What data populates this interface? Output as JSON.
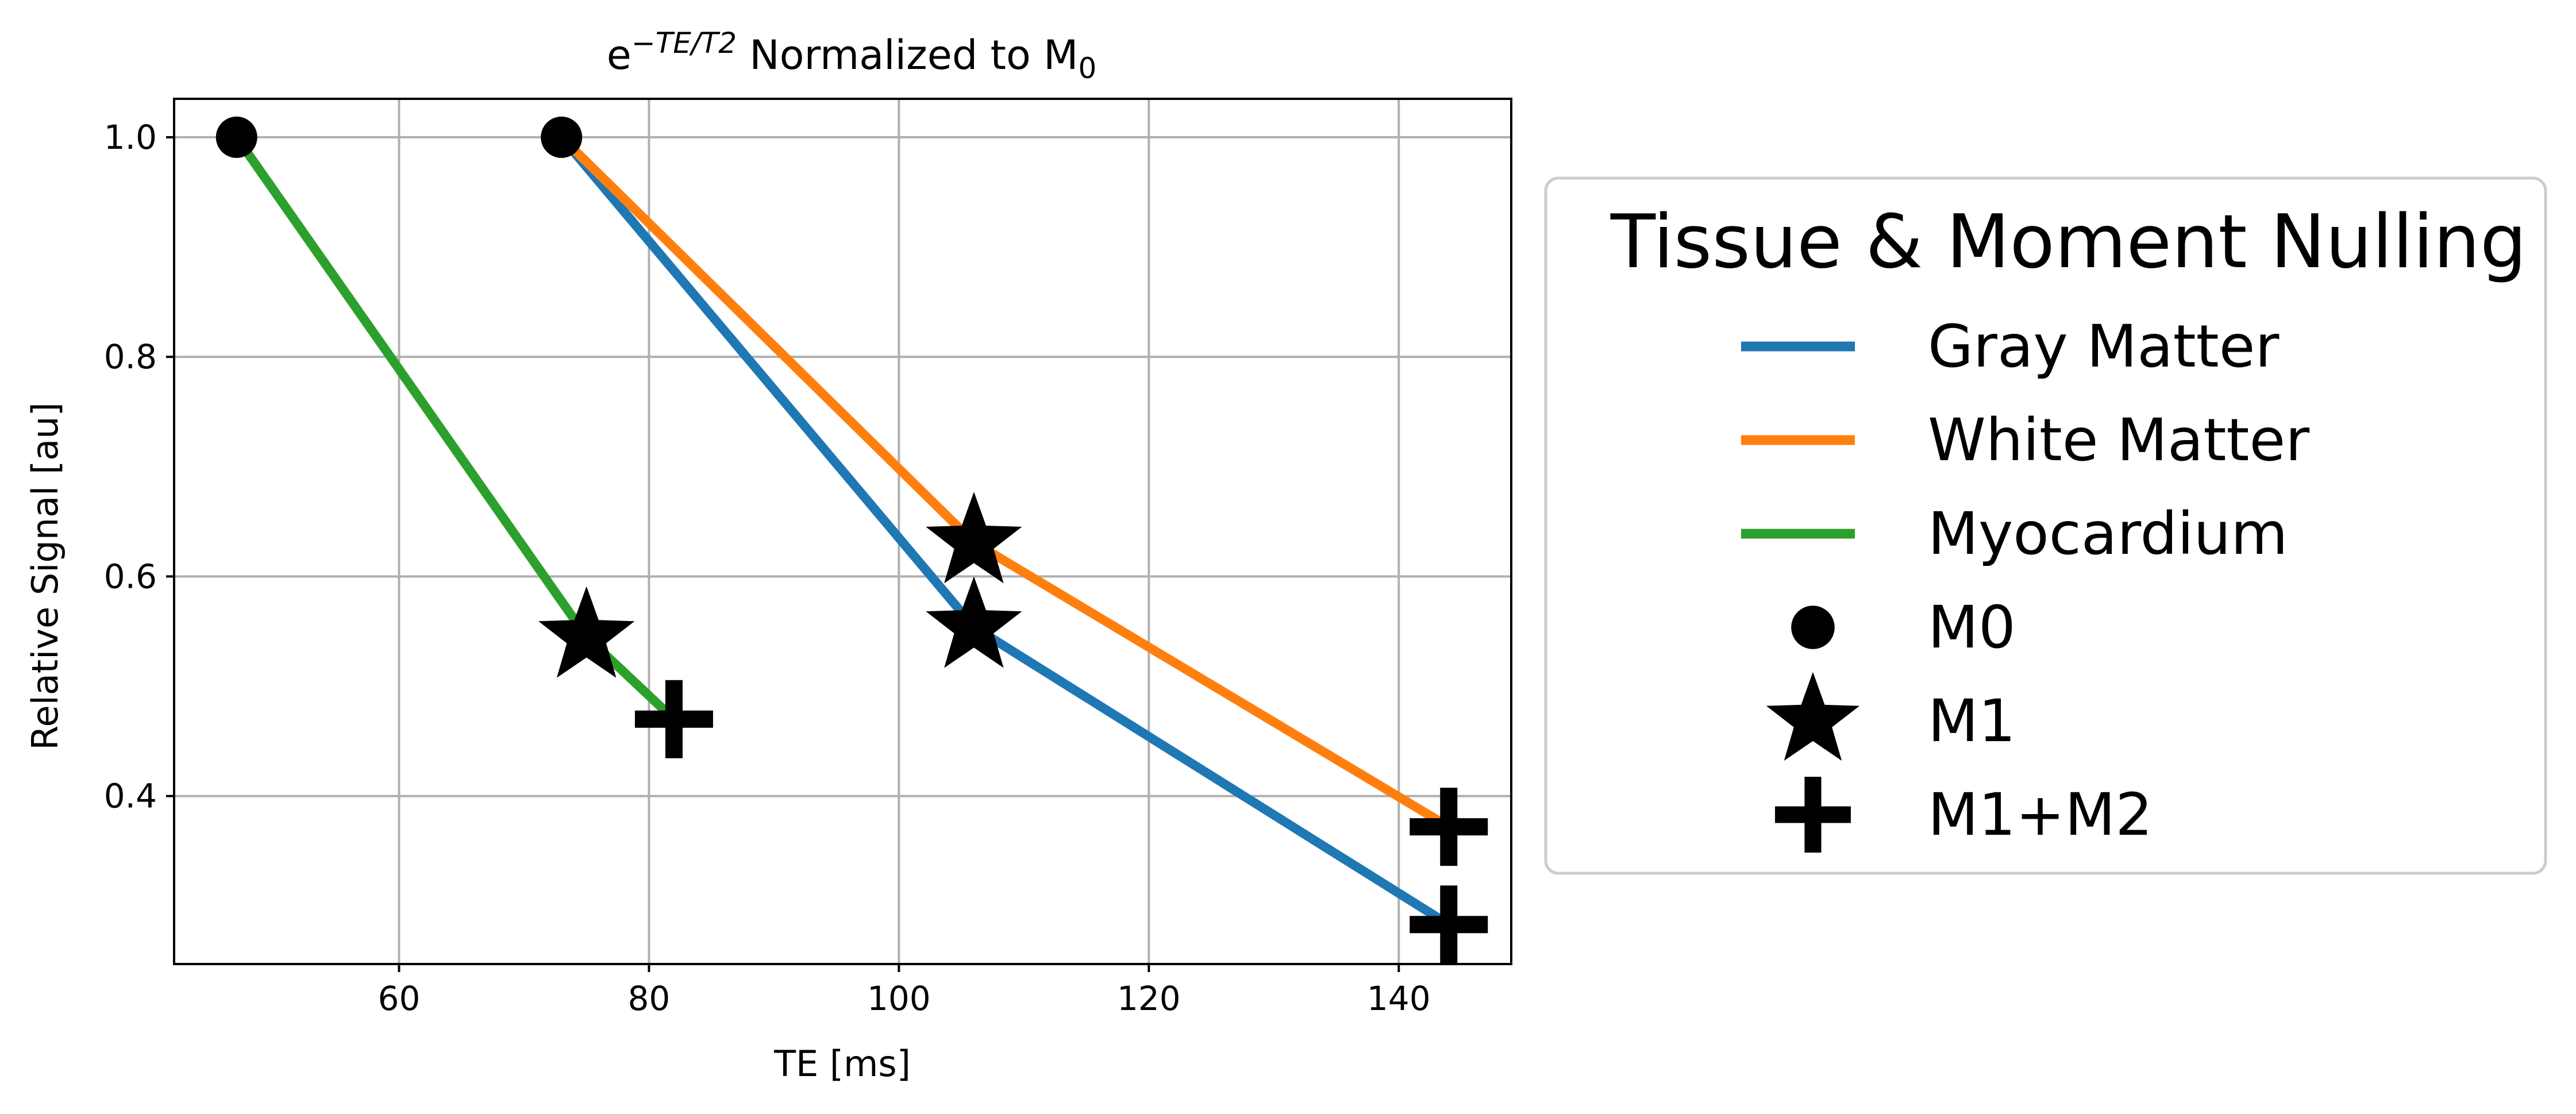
{
  "chart_data": {
    "type": "line",
    "title_base": "e",
    "title_sup": "−TE/T2",
    "title_rest": " Normalized to M",
    "title_sub": "0",
    "xlabel": "TE [ms]",
    "ylabel": "Relative Signal [au]",
    "xlim": [
      42,
      149
    ],
    "ylim": [
      0.247,
      1.035
    ],
    "xticks": [
      60,
      80,
      100,
      120,
      140
    ],
    "yticks": [
      0.4,
      0.6,
      0.8,
      1.0
    ],
    "xtick_labels": [
      "60",
      "80",
      "100",
      "120",
      "140"
    ],
    "ytick_labels": [
      "0.4",
      "0.6",
      "0.8",
      "1.0"
    ],
    "grid": true,
    "legend_placement": "outside-right",
    "series": [
      {
        "name": "Gray Matter",
        "color": "#1f77b4",
        "x": [
          73,
          106,
          144
        ],
        "y": [
          1.0,
          0.554,
          0.283
        ]
      },
      {
        "name": "White Matter",
        "color": "#ff7f0e",
        "x": [
          73,
          106,
          144
        ],
        "y": [
          1.0,
          0.631,
          0.372
        ]
      },
      {
        "name": "Myocardium",
        "color": "#2ca02c",
        "x": [
          47,
          75,
          82
        ],
        "y": [
          1.0,
          0.545,
          0.47
        ]
      }
    ],
    "markers": [
      {
        "name": "M0",
        "shape": "circle",
        "points": [
          [
            47,
            1.0
          ],
          [
            73,
            1.0
          ]
        ]
      },
      {
        "name": "M1",
        "shape": "star",
        "points": [
          [
            75,
            0.545
          ],
          [
            106,
            0.554
          ],
          [
            106,
            0.631
          ]
        ]
      },
      {
        "name": "M1+M2",
        "shape": "plus",
        "points": [
          [
            82,
            0.47
          ],
          [
            144,
            0.283
          ],
          [
            144,
            0.372
          ]
        ]
      }
    ],
    "legend": {
      "title": "Tissue & Moment Nulling",
      "entries": [
        {
          "label": "Gray Matter",
          "kind": "line",
          "color": "#1f77b4"
        },
        {
          "label": "White Matter",
          "kind": "line",
          "color": "#ff7f0e"
        },
        {
          "label": "Myocardium",
          "kind": "line",
          "color": "#2ca02c"
        },
        {
          "label": "M0",
          "kind": "circle"
        },
        {
          "label": "M1",
          "kind": "star"
        },
        {
          "label": "M1+M2",
          "kind": "plus"
        }
      ]
    }
  }
}
